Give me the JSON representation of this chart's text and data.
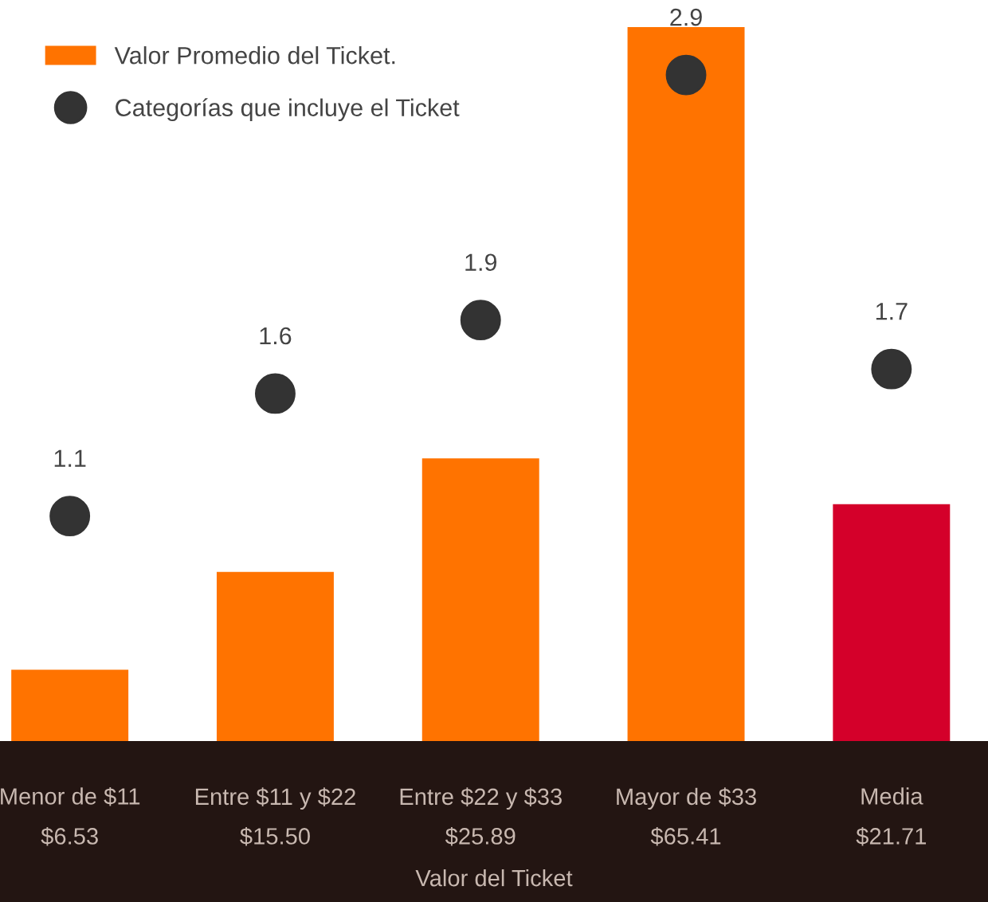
{
  "chart_data": {
    "type": "bar",
    "xlabel": "Valor del Ticket",
    "categories": [
      "Menor de $11",
      "Entre $11 y $22",
      "Entre $22 y $33",
      "Mayor de $33",
      "Media"
    ],
    "series": [
      {
        "name": "Valor Promedio del Ticket.",
        "color": "#ff7300",
        "colors": [
          "#ff7300",
          "#ff7300",
          "#ff7300",
          "#ff7300",
          "#d4002a"
        ],
        "values": [
          6.53,
          15.5,
          25.89,
          65.41,
          21.71
        ],
        "value_labels": [
          "$6.53",
          "$15.50",
          "$25.89",
          "$65.41",
          "$21.71"
        ]
      },
      {
        "name": "Categorías que incluye el Ticket",
        "type": "scatter",
        "axis": "y2",
        "color": "#333333",
        "values": [
          1.1,
          1.6,
          1.9,
          2.9,
          1.7
        ],
        "data_labels": true
      }
    ],
    "legend": "top left",
    "marker": "circle",
    "grid": false,
    "tick_labels": "x"
  }
}
